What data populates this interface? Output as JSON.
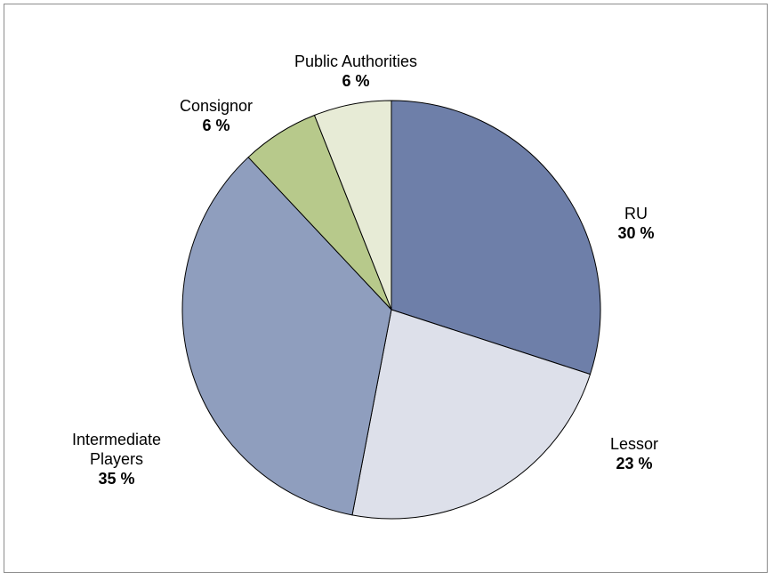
{
  "chart_data": {
    "type": "pie",
    "title": "",
    "slices": [
      {
        "label": "RU",
        "value": 30,
        "display": "30 %",
        "color": "#6e7fa9"
      },
      {
        "label": "Lessor",
        "value": 23,
        "display": "23 %",
        "color": "#dde0ea"
      },
      {
        "label": "Intermediate Players",
        "label_lines": [
          "Intermediate",
          "Players"
        ],
        "value": 35,
        "display": "35 %",
        "color": "#8f9ebe"
      },
      {
        "label": "Consignor",
        "value": 6,
        "display": "6 %",
        "color": "#b7c98b"
      },
      {
        "label": "Public Authorities",
        "value": 6,
        "display": "6 %",
        "color": "#e7ebd6"
      }
    ],
    "legend": "none",
    "labels_outside": true
  }
}
